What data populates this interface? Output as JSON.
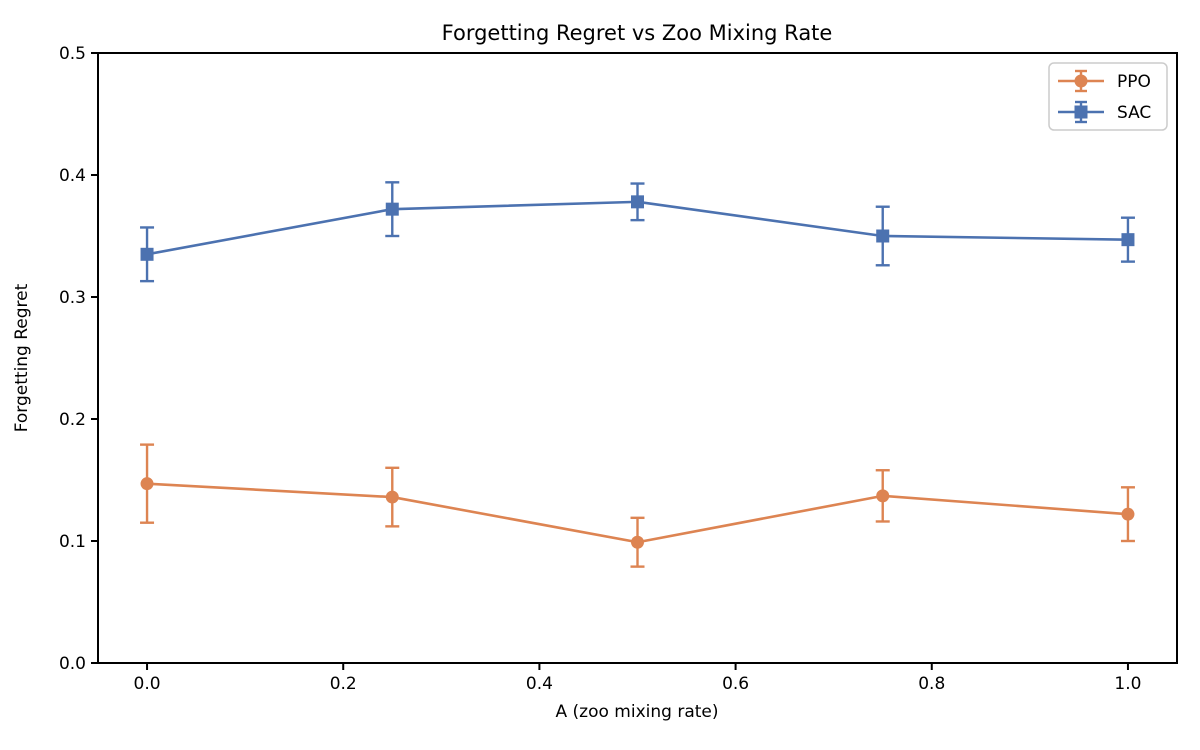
{
  "figure": {
    "background": "#ffffff"
  },
  "chart_data": {
    "type": "line",
    "title": "Forgetting Regret vs Zoo Mixing Rate",
    "xlabel": "A (zoo mixing rate)",
    "ylabel": "Forgetting Regret",
    "x": [
      0.0,
      0.25,
      0.5,
      0.75,
      1.0
    ],
    "series": [
      {
        "name": "PPO",
        "color": "#DD8452",
        "marker": "circle",
        "values": [
          0.147,
          0.136,
          0.099,
          0.137,
          0.122
        ],
        "errors": [
          0.032,
          0.024,
          0.02,
          0.021,
          0.022
        ]
      },
      {
        "name": "SAC",
        "color": "#4C72B0",
        "marker": "square",
        "values": [
          0.335,
          0.372,
          0.378,
          0.35,
          0.347
        ],
        "errors": [
          0.022,
          0.022,
          0.015,
          0.024,
          0.018
        ]
      }
    ],
    "xlim": [
      -0.05,
      1.05
    ],
    "ylim": [
      0.0,
      0.5
    ],
    "xticks": [
      0.0,
      0.2,
      0.4,
      0.6,
      0.8,
      1.0
    ],
    "xtick_labels": [
      "0.0",
      "0.2",
      "0.4",
      "0.6",
      "0.8",
      "1.0"
    ],
    "yticks": [
      0.0,
      0.1,
      0.2,
      0.3,
      0.4,
      0.5
    ],
    "ytick_labels": [
      "0.0",
      "0.1",
      "0.2",
      "0.3",
      "0.4",
      "0.5"
    ],
    "grid": false,
    "legend": {
      "position": "upper right"
    },
    "axis_color": "#000000",
    "legend_border_color": "#cccccc",
    "legend_background": "#ffffff"
  }
}
